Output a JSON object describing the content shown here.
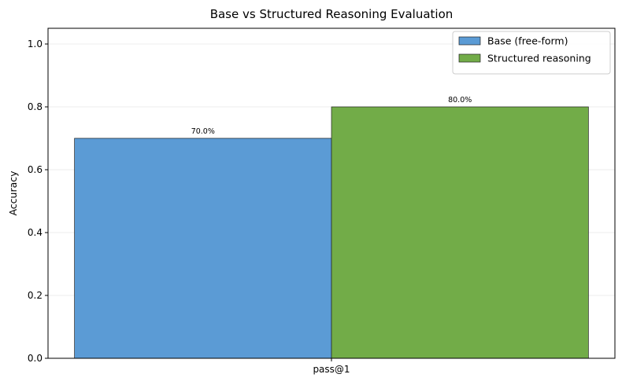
{
  "chart_data": {
    "type": "bar",
    "title": "Base vs Structured Reasoning Evaluation",
    "xlabel": "",
    "ylabel": "Accuracy",
    "categories": [
      "pass@1"
    ],
    "ylim": [
      0,
      1.05
    ],
    "yticks": [
      0.0,
      0.2,
      0.4,
      0.6,
      0.8,
      1.0
    ],
    "ytick_labels": [
      "0.0",
      "0.2",
      "0.4",
      "0.6",
      "0.8",
      "1.0"
    ],
    "grid": "horizontal",
    "legend_position": "top-right",
    "series": [
      {
        "name": "Base (free-form)",
        "values": [
          0.7
        ],
        "labels": [
          "70.0%"
        ],
        "color": "#5b9bd5"
      },
      {
        "name": "Structured reasoning",
        "values": [
          0.8
        ],
        "labels": [
          "80.0%"
        ],
        "color": "#72ac48"
      }
    ]
  }
}
